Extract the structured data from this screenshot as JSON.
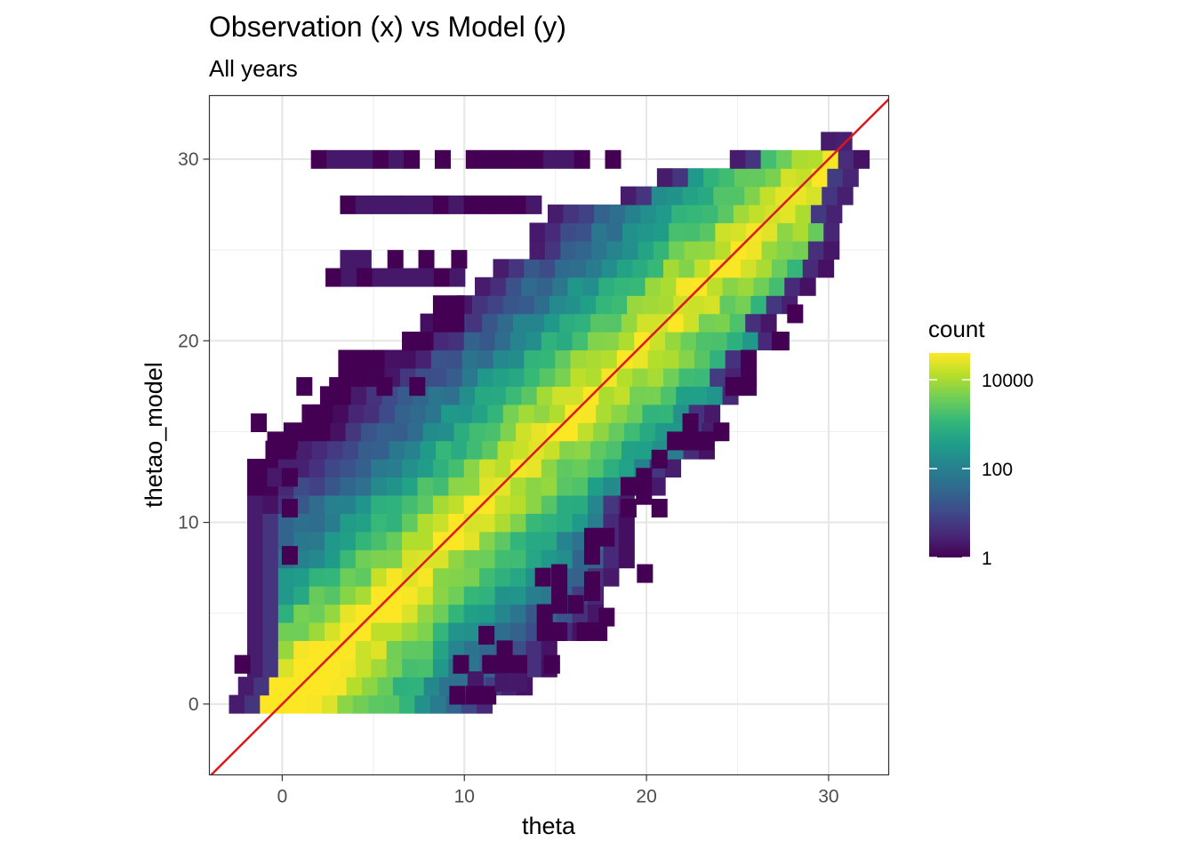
{
  "chart_data": {
    "type": "heatmap",
    "title": "Observation (x) vs Model (y)",
    "subtitle": "All years",
    "xlabel": "theta",
    "ylabel": "thetao_model",
    "xlim": [
      -4,
      33.3
    ],
    "ylim": [
      -3.9,
      33.5
    ],
    "x_ticks": [
      0,
      10,
      20,
      30
    ],
    "y_ticks": [
      0,
      10,
      20,
      30
    ],
    "x_tick_labels": [
      "0",
      "10",
      "20",
      "30"
    ],
    "y_tick_labels": [
      "0",
      "10",
      "20",
      "30"
    ],
    "bin_width": 0.85,
    "bin_height": 1.0,
    "grid": true,
    "reference_line": {
      "label": "y = x",
      "color": "#e0161b"
    },
    "legend": {
      "title": "count",
      "scale": "log10",
      "min": 1,
      "max": 40000,
      "ticks": [
        1,
        100,
        10000
      ],
      "tick_labels": [
        "1",
        "100",
        "10000"
      ],
      "placement": "right",
      "colors": [
        "#440154",
        "#482878",
        "#3e4a89",
        "#31688e",
        "#26828e",
        "#1f9e89",
        "#35b779",
        "#6ece58",
        "#b5de2b",
        "#fde725"
      ]
    },
    "density_model": {
      "peak_count": 40000,
      "falloff_per_unit_distance": 0.35,
      "low_temperature_boost": 1.2,
      "low_temperature_range": [
        0,
        6
      ],
      "row_extents": [
        {
          "y": 0,
          "x_min": -2.5,
          "x_max": 11.5
        },
        {
          "y": 1,
          "x_min": -2,
          "x_max": 13
        },
        {
          "y": 2,
          "x_min": -1.5,
          "x_max": 14.5
        },
        {
          "y": 3,
          "x_min": -1.5,
          "x_max": 15
        },
        {
          "y": 4,
          "x_min": -1.5,
          "x_max": 16
        },
        {
          "y": 5,
          "x_min": -1.5,
          "x_max": 17
        },
        {
          "y": 6,
          "x_min": -1.5,
          "x_max": 17.5
        },
        {
          "y": 7,
          "x_min": -1.5,
          "x_max": 18
        },
        {
          "y": 8,
          "x_min": -1.5,
          "x_max": 18.5
        },
        {
          "y": 9,
          "x_min": -1.5,
          "x_max": 18.5
        },
        {
          "y": 10,
          "x_min": -1.5,
          "x_max": 18.5
        },
        {
          "y": 11,
          "x_min": -1.5,
          "x_max": 19
        },
        {
          "y": 12,
          "x_min": -1.5,
          "x_max": 20.5
        },
        {
          "y": 13,
          "x_min": -1.5,
          "x_max": 21.5
        },
        {
          "y": 14,
          "x_min": -0.5,
          "x_max": 23
        },
        {
          "y": 15,
          "x_min": 0.5,
          "x_max": 23.5
        },
        {
          "y": 16,
          "x_min": 1.5,
          "x_max": 23.5
        },
        {
          "y": 17,
          "x_min": 2.5,
          "x_max": 25
        },
        {
          "y": 18,
          "x_min": 3.5,
          "x_max": 25
        },
        {
          "y": 19,
          "x_min": 3.5,
          "x_max": 25.5
        },
        {
          "y": 20,
          "x_min": 7,
          "x_max": 27
        },
        {
          "y": 21,
          "x_min": 8,
          "x_max": 26.5
        },
        {
          "y": 22,
          "x_min": 10,
          "x_max": 28
        },
        {
          "y": 23,
          "x_min": 11,
          "x_max": 28.5
        },
        {
          "y": 24,
          "x_min": 12,
          "x_max": 29.5
        },
        {
          "y": 25,
          "x_min": 14,
          "x_max": 30
        },
        {
          "y": 26,
          "x_min": 14,
          "x_max": 30.5
        },
        {
          "y": 27,
          "x_min": 15,
          "x_max": 30.5
        },
        {
          "y": 28,
          "x_min": 19,
          "x_max": 31
        },
        {
          "y": 29,
          "x_min": 21,
          "x_max": 31.5
        },
        {
          "y": 30,
          "x_min": 25,
          "x_max": 31.5
        },
        {
          "y": 31,
          "x_min": 30,
          "x_max": 31
        }
      ]
    },
    "sparse_bins": [
      {
        "x": 2,
        "y": 30,
        "count": 1
      },
      {
        "x": 2.85,
        "y": 30,
        "count": 2
      },
      {
        "x": 3.7,
        "y": 30,
        "count": 2
      },
      {
        "x": 4.55,
        "y": 30,
        "count": 2
      },
      {
        "x": 5.4,
        "y": 30,
        "count": 1
      },
      {
        "x": 6.25,
        "y": 30,
        "count": 2
      },
      {
        "x": 7.1,
        "y": 30,
        "count": 1
      },
      {
        "x": 8.8,
        "y": 30,
        "count": 1
      },
      {
        "x": 10.5,
        "y": 30,
        "count": 1
      },
      {
        "x": 11.35,
        "y": 30,
        "count": 1
      },
      {
        "x": 12.2,
        "y": 30,
        "count": 1
      },
      {
        "x": 13.05,
        "y": 30,
        "count": 1
      },
      {
        "x": 13.9,
        "y": 30,
        "count": 1
      },
      {
        "x": 14.75,
        "y": 30,
        "count": 2
      },
      {
        "x": 15.6,
        "y": 30,
        "count": 2
      },
      {
        "x": 16.45,
        "y": 30,
        "count": 1
      },
      {
        "x": 18.15,
        "y": 30,
        "count": 1
      },
      {
        "x": 3.6,
        "y": 27.5,
        "count": 1
      },
      {
        "x": 4.45,
        "y": 27.5,
        "count": 2
      },
      {
        "x": 5.3,
        "y": 27.5,
        "count": 2
      },
      {
        "x": 6.15,
        "y": 27.5,
        "count": 2
      },
      {
        "x": 7,
        "y": 27.5,
        "count": 2
      },
      {
        "x": 7.85,
        "y": 27.5,
        "count": 2
      },
      {
        "x": 8.7,
        "y": 27.5,
        "count": 1
      },
      {
        "x": 9.55,
        "y": 27.5,
        "count": 2
      },
      {
        "x": 10.4,
        "y": 27.5,
        "count": 1
      },
      {
        "x": 11.25,
        "y": 27.5,
        "count": 1
      },
      {
        "x": 12.1,
        "y": 27.5,
        "count": 1
      },
      {
        "x": 12.95,
        "y": 27.5,
        "count": 1
      },
      {
        "x": 13.8,
        "y": 27.5,
        "count": 2
      },
      {
        "x": 3.6,
        "y": 24.5,
        "count": 2
      },
      {
        "x": 4.45,
        "y": 24.5,
        "count": 2
      },
      {
        "x": 6.2,
        "y": 24.5,
        "count": 1
      },
      {
        "x": 7.9,
        "y": 24.5,
        "count": 1
      },
      {
        "x": 9.7,
        "y": 24.5,
        "count": 1
      },
      {
        "x": 2.8,
        "y": 23.5,
        "count": 1
      },
      {
        "x": 3.65,
        "y": 23.5,
        "count": 2
      },
      {
        "x": 4.5,
        "y": 23.5,
        "count": 1
      },
      {
        "x": 5.35,
        "y": 23.5,
        "count": 2
      },
      {
        "x": 6.2,
        "y": 23.5,
        "count": 2
      },
      {
        "x": 7.05,
        "y": 23.5,
        "count": 2
      },
      {
        "x": 7.9,
        "y": 23.5,
        "count": 2
      },
      {
        "x": 8.75,
        "y": 23.5,
        "count": 1
      },
      {
        "x": 9.6,
        "y": 23.5,
        "count": 2
      },
      {
        "x": 8.7,
        "y": 21,
        "count": 1
      },
      {
        "x": 9.55,
        "y": 21,
        "count": 1
      },
      {
        "x": 8.7,
        "y": 22,
        "count": 1
      },
      {
        "x": 9.55,
        "y": 22,
        "count": 1
      },
      {
        "x": 7,
        "y": 20,
        "count": 1
      },
      {
        "x": 7.85,
        "y": 20,
        "count": 1
      },
      {
        "x": 1.2,
        "y": 17.5,
        "count": 1
      },
      {
        "x": 3,
        "y": 17.5,
        "count": 1
      },
      {
        "x": 5.6,
        "y": 17.5,
        "count": 1
      },
      {
        "x": 7.4,
        "y": 17.5,
        "count": 1
      },
      {
        "x": -1.3,
        "y": 15.5,
        "count": 1
      },
      {
        "x": -0.4,
        "y": 14.5,
        "count": 1
      },
      {
        "x": 0.4,
        "y": 14.5,
        "count": 1
      },
      {
        "x": -1.3,
        "y": 12.5,
        "count": 1
      },
      {
        "x": -0.4,
        "y": 12.5,
        "count": 2
      },
      {
        "x": 0.4,
        "y": 12.5,
        "count": 1
      },
      {
        "x": 0.4,
        "y": 10.8,
        "count": 1
      },
      {
        "x": 0.4,
        "y": 8.2,
        "count": 1
      },
      {
        "x": -2.2,
        "y": 2.2,
        "count": 1
      },
      {
        "x": 25.6,
        "y": 19,
        "count": 1
      },
      {
        "x": 25.6,
        "y": 18,
        "count": 1
      },
      {
        "x": 25.6,
        "y": 17.5,
        "count": 1
      },
      {
        "x": 24.75,
        "y": 17.5,
        "count": 1
      },
      {
        "x": 27.3,
        "y": 20,
        "count": 1
      },
      {
        "x": 28.15,
        "y": 21.5,
        "count": 1
      },
      {
        "x": 22.4,
        "y": 15.5,
        "count": 1
      },
      {
        "x": 21.55,
        "y": 14.5,
        "count": 1
      },
      {
        "x": 22.4,
        "y": 14.5,
        "count": 1
      },
      {
        "x": 23.25,
        "y": 14.5,
        "count": 1
      },
      {
        "x": 24.1,
        "y": 15,
        "count": 1
      },
      {
        "x": 20.7,
        "y": 13.5,
        "count": 1
      },
      {
        "x": 19.85,
        "y": 12.5,
        "count": 1
      },
      {
        "x": 19,
        "y": 12,
        "count": 1
      },
      {
        "x": 19.85,
        "y": 11.5,
        "count": 1
      },
      {
        "x": 20.7,
        "y": 10.8,
        "count": 1
      },
      {
        "x": 19,
        "y": 10.8,
        "count": 1
      },
      {
        "x": 17.8,
        "y": 9.2,
        "count": 1
      },
      {
        "x": 17,
        "y": 9.2,
        "count": 1
      },
      {
        "x": 17,
        "y": 8.2,
        "count": 1
      },
      {
        "x": 19.9,
        "y": 7.2,
        "count": 1
      },
      {
        "x": 17,
        "y": 6.8,
        "count": 1
      },
      {
        "x": 17,
        "y": 6.2,
        "count": 1
      },
      {
        "x": 15.2,
        "y": 7.2,
        "count": 1
      },
      {
        "x": 14.3,
        "y": 7,
        "count": 1
      },
      {
        "x": 15.2,
        "y": 6.2,
        "count": 1
      },
      {
        "x": 16.1,
        "y": 5.5,
        "count": 1
      },
      {
        "x": 15.2,
        "y": 5.5,
        "count": 1
      },
      {
        "x": 14.4,
        "y": 5,
        "count": 1
      },
      {
        "x": 17.8,
        "y": 4.8,
        "count": 1
      },
      {
        "x": 16.6,
        "y": 4,
        "count": 1
      },
      {
        "x": 17.4,
        "y": 4,
        "count": 1
      },
      {
        "x": 14.4,
        "y": 4,
        "count": 1
      },
      {
        "x": 15.2,
        "y": 4,
        "count": 1
      },
      {
        "x": 11.2,
        "y": 3.8,
        "count": 1
      },
      {
        "x": 12.2,
        "y": 3,
        "count": 1
      },
      {
        "x": 11.4,
        "y": 2.2,
        "count": 1
      },
      {
        "x": 12.2,
        "y": 2.2,
        "count": 1
      },
      {
        "x": 13,
        "y": 2.2,
        "count": 1
      },
      {
        "x": 14.8,
        "y": 2.2,
        "count": 1
      },
      {
        "x": 9.8,
        "y": 2.2,
        "count": 1
      },
      {
        "x": 10.6,
        "y": 1.3,
        "count": 2
      },
      {
        "x": 9.6,
        "y": 0.5,
        "count": 1
      },
      {
        "x": 10.5,
        "y": 0.5,
        "count": 1
      },
      {
        "x": 11.3,
        "y": 0.5,
        "count": 1
      },
      {
        "x": 12.1,
        "y": 1.2,
        "count": 2
      },
      {
        "x": 13,
        "y": 1.2,
        "count": 2
      }
    ]
  }
}
